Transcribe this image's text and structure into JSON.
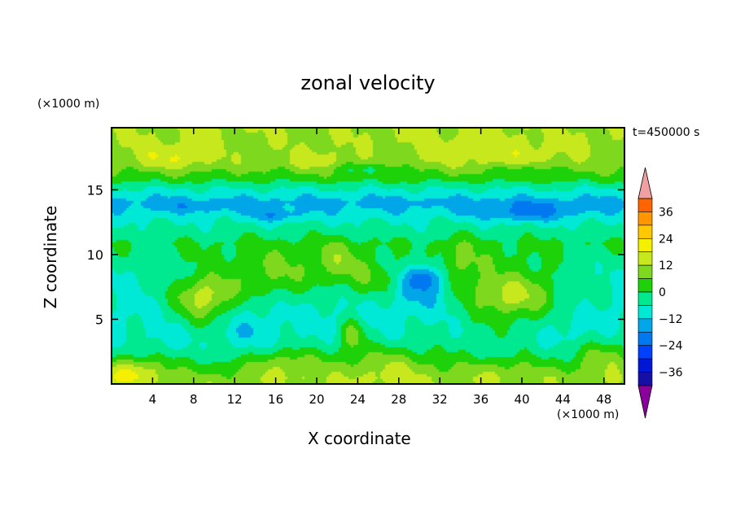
{
  "chart_data": {
    "type": "heatmap",
    "title": "zonal velocity",
    "xlabel": "X coordinate",
    "ylabel": "Z coordinate",
    "x_unit": "(×1000 m)",
    "z_unit": "(×1000 m)",
    "time_label": "t=450000 s",
    "xlim": [
      0,
      50
    ],
    "ylim": [
      0,
      19.8
    ],
    "x_ticks": [
      4,
      8,
      12,
      16,
      20,
      24,
      28,
      32,
      36,
      40,
      44,
      48
    ],
    "y_ticks": [
      5,
      10,
      15
    ],
    "colorbar": {
      "ticks": [
        36,
        24,
        12,
        0,
        -12,
        -24,
        -36
      ],
      "levels": [
        -42,
        -36,
        -30,
        -24,
        -18,
        -12,
        -6,
        0,
        6,
        12,
        18,
        24,
        30,
        36,
        42
      ],
      "colors": [
        "#8a009c",
        "#3d008c",
        "#1410a6",
        "#0018d6",
        "#0040ff",
        "#0078f0",
        "#00a6e8",
        "#00e8d6",
        "#00e890",
        "#1ed20a",
        "#7ed81e",
        "#c8e81e",
        "#f4f000",
        "#ffc800",
        "#ff9600",
        "#ff6400",
        "#f01e0a",
        "#f0a0a0"
      ]
    },
    "base_field": [
      [
        0,
        10
      ],
      [
        0.4,
        9
      ],
      [
        1.2,
        3
      ],
      [
        2.2,
        -2
      ],
      [
        3.5,
        -6
      ],
      [
        5.5,
        -8
      ],
      [
        8.5,
        -6
      ],
      [
        10.8,
        0
      ],
      [
        12.5,
        -6
      ],
      [
        13.5,
        -12
      ],
      [
        14,
        -15
      ],
      [
        15.3,
        -4
      ],
      [
        15.8,
        2
      ],
      [
        17,
        9
      ],
      [
        18.5,
        11
      ],
      [
        19.8,
        12
      ]
    ],
    "blobs": [
      [
        9,
        6.5,
        3.5,
        2.2,
        16
      ],
      [
        9,
        6.8,
        2,
        1.2,
        6
      ],
      [
        39,
        6.8,
        5.5,
        2.6,
        16
      ],
      [
        39,
        6.8,
        2.5,
        1.2,
        6
      ],
      [
        16,
        8.5,
        5,
        2,
        12
      ],
      [
        26,
        8,
        3.5,
        1.6,
        12
      ],
      [
        34,
        9,
        2.5,
        2,
        10
      ],
      [
        23.5,
        3.8,
        1.2,
        1.2,
        14
      ],
      [
        22,
        9.5,
        2.5,
        1.5,
        10
      ],
      [
        30,
        7.5,
        3.5,
        1.6,
        -12
      ],
      [
        30.5,
        8.3,
        1.6,
        0.9,
        -12
      ],
      [
        13,
        4,
        3,
        1.5,
        -6
      ],
      [
        6,
        3.5,
        2,
        1.2,
        -4
      ],
      [
        44,
        4,
        3,
        1.5,
        -4
      ],
      [
        17,
        1.5,
        3.5,
        1.2,
        10
      ],
      [
        27,
        1.5,
        5,
        1.5,
        10
      ],
      [
        2,
        1,
        3,
        1,
        14
      ],
      [
        38,
        1,
        4,
        1,
        6
      ],
      [
        48,
        2,
        3,
        1.5,
        10
      ],
      [
        40.5,
        13.2,
        4.5,
        0.7,
        -10
      ],
      [
        16,
        13,
        2.5,
        0.5,
        -8
      ],
      [
        8.5,
        13.6,
        3.5,
        0.3,
        -4
      ],
      [
        6,
        17.5,
        4,
        1,
        8
      ],
      [
        37,
        17.8,
        8,
        1.2,
        6
      ],
      [
        25,
        16.7,
        3,
        0.5,
        -8
      ],
      [
        40,
        16.5,
        3,
        0.4,
        -6
      ],
      [
        20,
        17.2,
        3,
        0.8,
        6
      ]
    ]
  }
}
